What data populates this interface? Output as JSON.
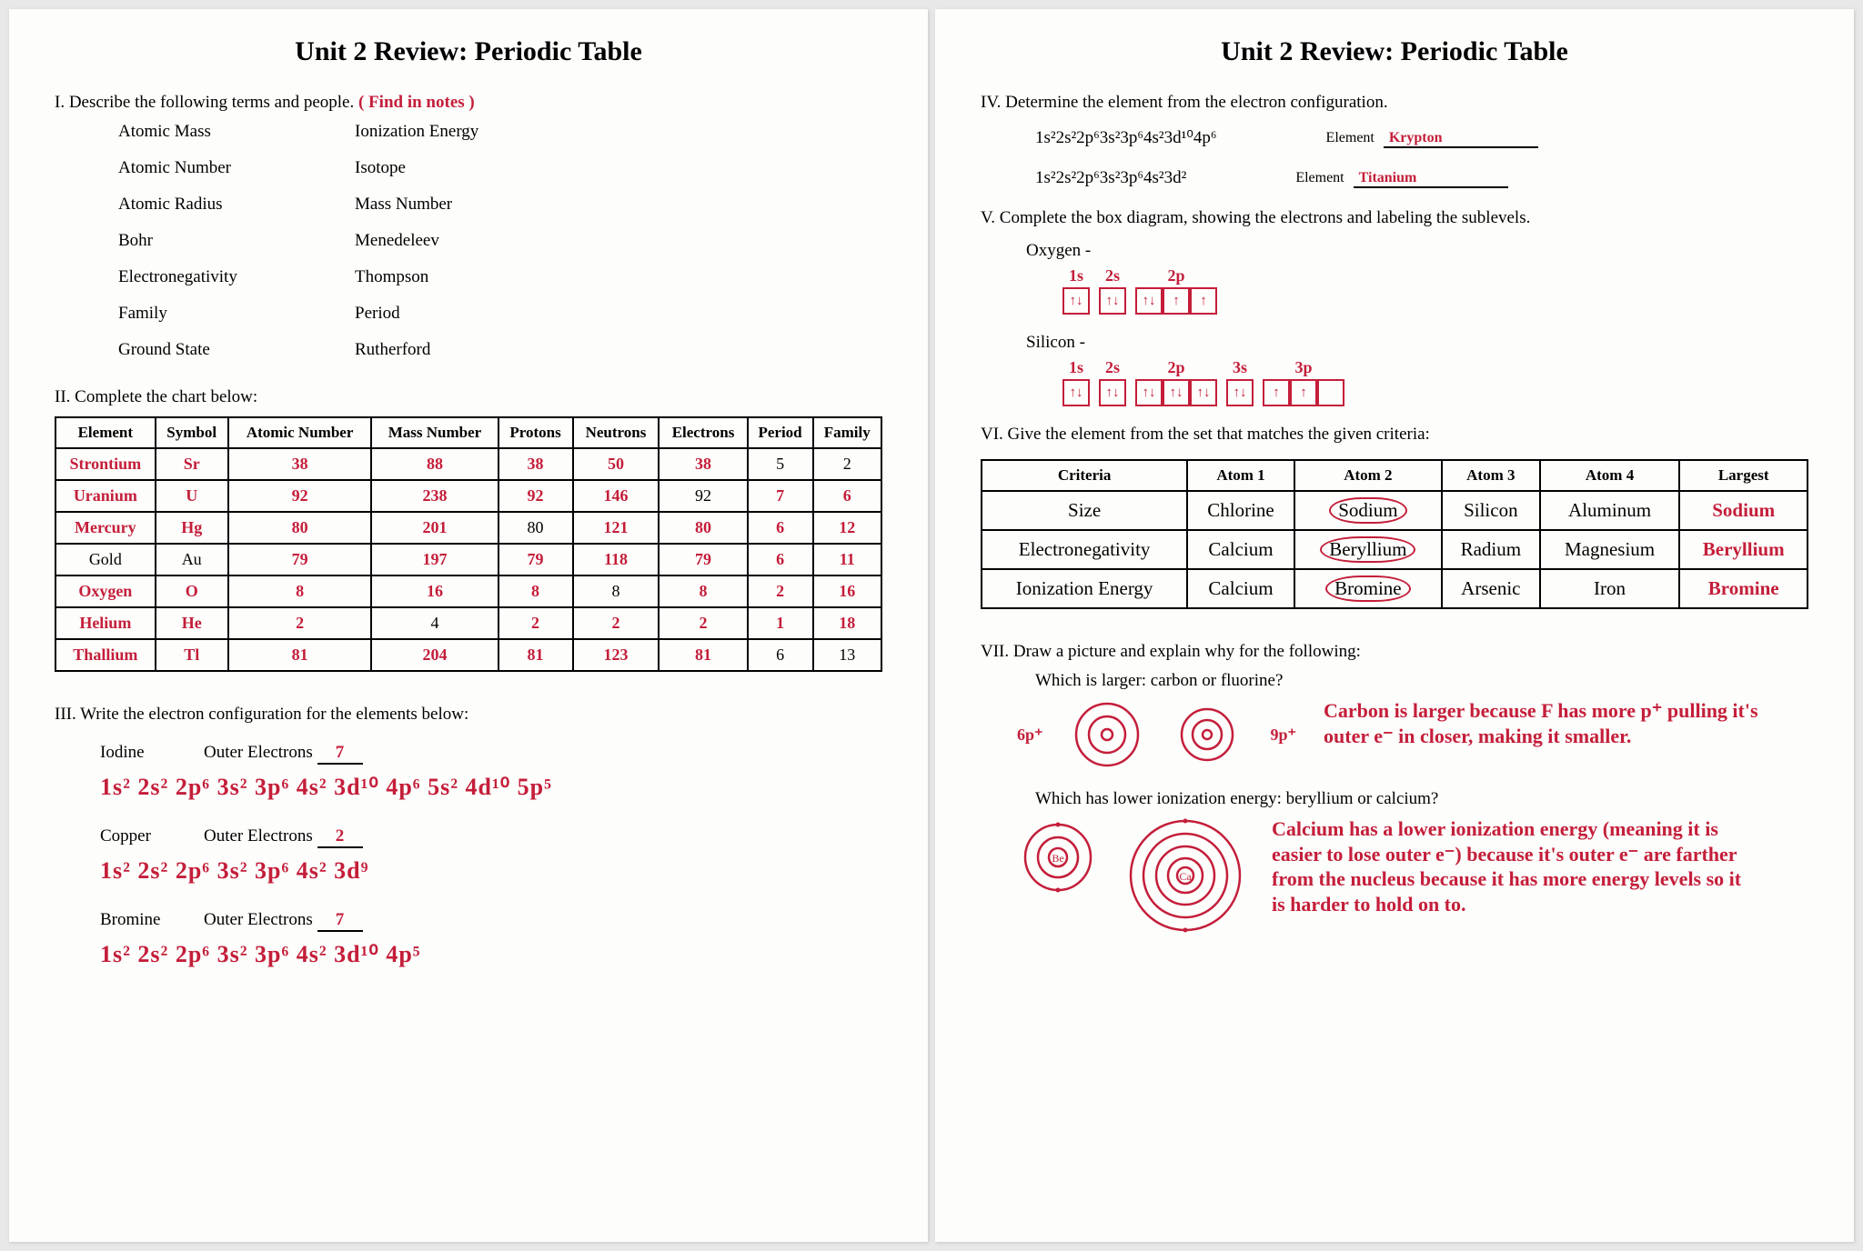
{
  "colors": {
    "hw_red": "#c41e3a",
    "ink_black": "#222",
    "paper": "#fdfdfb"
  },
  "title": "Unit 2 Review:  Periodic Table",
  "left": {
    "sec1": {
      "heading": "I.  Describe the following terms and people.",
      "annotation": "( Find in notes )",
      "terms_col1": [
        "Atomic Mass",
        "Atomic Number",
        "Atomic Radius",
        "Bohr",
        "Electronegativity",
        "Family",
        "Ground State"
      ],
      "terms_col2": [
        "Ionization Energy",
        "Isotope",
        "Mass Number",
        "Menedeleev",
        "Thompson",
        "Period",
        "Rutherford"
      ]
    },
    "sec2": {
      "heading": "II.  Complete the chart below:",
      "headers": [
        "Element",
        "Symbol",
        "Atomic Number",
        "Mass Number",
        "Protons",
        "Neutrons",
        "Electrons",
        "Period",
        "Family"
      ],
      "rows": [
        {
          "cells": [
            "Strontium",
            "Sr",
            "38",
            "88",
            "38",
            "50",
            "38",
            "5",
            "2"
          ],
          "hw": [
            1,
            1,
            1,
            1,
            1,
            1,
            1,
            0,
            0
          ]
        },
        {
          "cells": [
            "Uranium",
            "U",
            "92",
            "238",
            "92",
            "146",
            "92",
            "7",
            "6"
          ],
          "hw": [
            1,
            1,
            1,
            1,
            1,
            1,
            0,
            1,
            1
          ]
        },
        {
          "cells": [
            "Mercury",
            "Hg",
            "80",
            "201",
            "80",
            "121",
            "80",
            "6",
            "12"
          ],
          "hw": [
            1,
            1,
            1,
            1,
            0,
            1,
            1,
            1,
            1
          ]
        },
        {
          "cells": [
            "Gold",
            "Au",
            "79",
            "197",
            "79",
            "118",
            "79",
            "6",
            "11"
          ],
          "hw": [
            0,
            0,
            1,
            1,
            1,
            1,
            1,
            1,
            1
          ]
        },
        {
          "cells": [
            "Oxygen",
            "O",
            "8",
            "16",
            "8",
            "8",
            "8",
            "2",
            "16"
          ],
          "hw": [
            1,
            1,
            1,
            1,
            1,
            0,
            1,
            1,
            1
          ]
        },
        {
          "cells": [
            "Helium",
            "He",
            "2",
            "4",
            "2",
            "2",
            "2",
            "1",
            "18"
          ],
          "hw": [
            1,
            1,
            1,
            0,
            1,
            1,
            1,
            1,
            1
          ]
        },
        {
          "cells": [
            "Thallium",
            "Tl",
            "81",
            "204",
            "81",
            "123",
            "81",
            "6",
            "13"
          ],
          "hw": [
            1,
            1,
            1,
            1,
            1,
            1,
            1,
            0,
            0
          ]
        }
      ]
    },
    "sec3": {
      "heading": "III.  Write the electron configuration for the elements below:",
      "items": [
        {
          "name": "Iodine",
          "outer": "7",
          "cfg": "1s² 2s² 2p⁶ 3s² 3p⁶ 4s² 3d¹⁰ 4p⁶ 5s² 4d¹⁰ 5p⁵"
        },
        {
          "name": "Copper",
          "outer": "2",
          "cfg": "1s² 2s² 2p⁶ 3s² 3p⁶ 4s² 3d⁹"
        },
        {
          "name": "Bromine",
          "outer": "7",
          "cfg": "1s² 2s² 2p⁶ 3s² 3p⁶ 4s² 3d¹⁰ 4p⁵"
        }
      ],
      "outer_label": "Outer Electrons"
    }
  },
  "right": {
    "sec4": {
      "heading": "IV.  Determine the element from the electron configuration.",
      "element_label": "Element",
      "rows": [
        {
          "cfg": "1s²2s²2p⁶3s²3p⁶4s²3d¹⁰4p⁶",
          "answer": "Krypton"
        },
        {
          "cfg": "1s²2s²2p⁶3s²3p⁶4s²3d²",
          "answer": "Titanium"
        }
      ]
    },
    "sec5": {
      "heading": "V.  Complete the box diagram, showing the electrons and labeling the sublevels.",
      "items": [
        {
          "name": "Oxygen -",
          "groups": [
            {
              "label": "1s",
              "boxes": [
                "↑↓"
              ]
            },
            {
              "label": "2s",
              "boxes": [
                "↑↓"
              ]
            },
            {
              "label": "2p",
              "boxes": [
                "↑↓",
                "↑",
                "↑"
              ]
            }
          ]
        },
        {
          "name": "Silicon -",
          "groups": [
            {
              "label": "1s",
              "boxes": [
                "↑↓"
              ]
            },
            {
              "label": "2s",
              "boxes": [
                "↑↓"
              ]
            },
            {
              "label": "2p",
              "boxes": [
                "↑↓",
                "↑↓",
                "↑↓"
              ]
            },
            {
              "label": "3s",
              "boxes": [
                "↑↓"
              ]
            },
            {
              "label": "3p",
              "boxes": [
                "↑",
                "↑",
                ""
              ]
            }
          ]
        }
      ]
    },
    "sec6": {
      "heading": "VI.  Give the element from the set that matches the given criteria:",
      "headers": [
        "Criteria",
        "Atom 1",
        "Atom 2",
        "Atom 3",
        "Atom 4",
        "Largest"
      ],
      "rows": [
        {
          "criteria": "Size",
          "a1": "Chlorine",
          "a2": "Sodium",
          "a3": "Silicon",
          "a4": "Aluminum",
          "ans": "Sodium",
          "circle": 2
        },
        {
          "criteria": "Electronegativity",
          "a1": "Calcium",
          "a2": "Beryllium",
          "a3": "Radium",
          "a4": "Magnesium",
          "ans": "Beryllium",
          "circle": 2
        },
        {
          "criteria": "Ionization Energy",
          "a1": "Calcium",
          "a2": "Bromine",
          "a3": "Arsenic",
          "a4": "Iron",
          "ans": "Bromine",
          "circle": 2
        }
      ]
    },
    "sec7": {
      "heading": "VII.  Draw a picture and explain why for the following:",
      "q1": {
        "prompt": "Which is larger:  carbon or fluorine?",
        "left_label": "6p⁺",
        "right_label": "9p⁺",
        "explain": "Carbon is larger because F has more p⁺ pulling it's outer e⁻ in closer, making it smaller."
      },
      "q2": {
        "prompt": "Which has lower ionization energy:  beryllium or calcium?",
        "left_label": "Be",
        "right_label": "Ca",
        "explain": "Calcium has a lower ionization energy (meaning it is easier to lose outer e⁻) because it's outer e⁻ are farther from the nucleus because it has more energy levels so it is harder to hold on to."
      }
    }
  }
}
